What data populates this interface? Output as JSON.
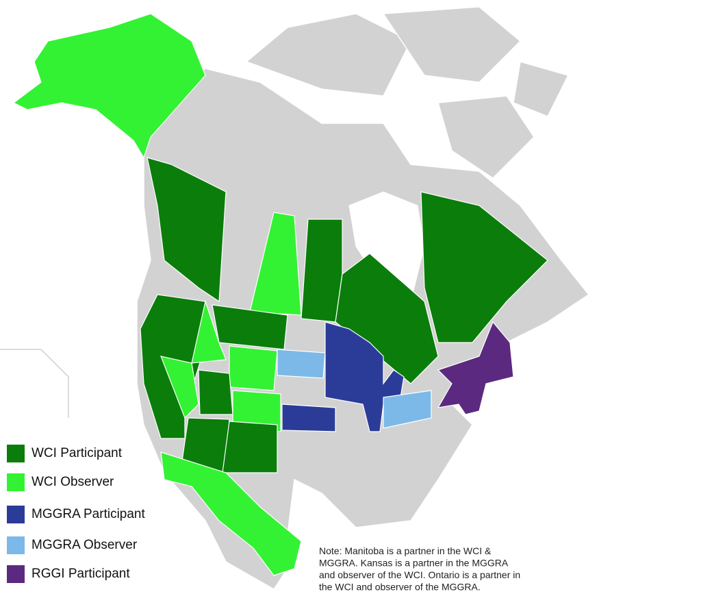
{
  "legend": [
    {
      "label": "WCI Participant",
      "color": "#0b7d0b"
    },
    {
      "label": "WCI Observer",
      "color": "#33f233"
    },
    {
      "label": "MGGRA Participant",
      "color": "#2b3c98"
    },
    {
      "label": "MGGRA Observer",
      "color": "#7cb9e8"
    },
    {
      "label": "RGGI Participant",
      "color": "#5b2a80"
    }
  ],
  "note": {
    "lines": [
      "Note: Manitoba is a partner in the WCI &",
      "MGGRA.  Kansas is a partner in the MGGRA",
      "and observer of the WCI.  Ontario is a partner in",
      "the WCI and observer of the MGGRA."
    ]
  }
}
